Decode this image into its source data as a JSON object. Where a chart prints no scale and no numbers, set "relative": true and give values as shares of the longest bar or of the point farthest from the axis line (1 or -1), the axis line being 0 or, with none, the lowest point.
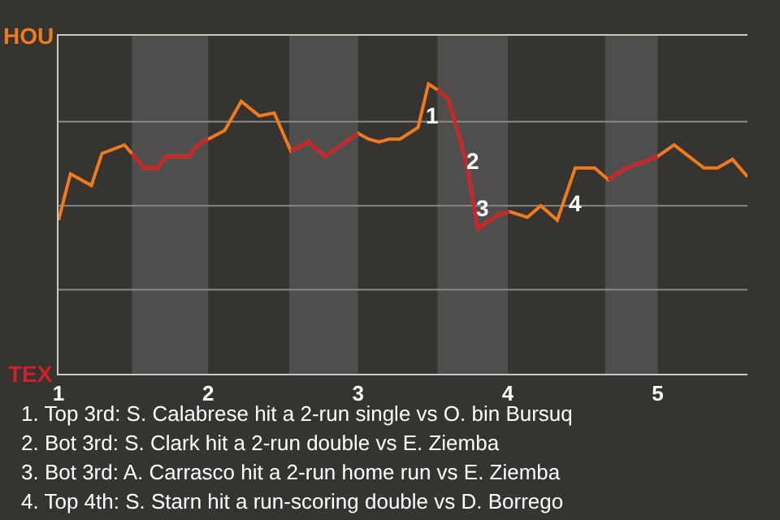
{
  "chart_data": {
    "type": "line",
    "relative": true,
    "marker": "none",
    "line_style": "solid",
    "x": [
      1.0,
      1.08,
      1.22,
      1.29,
      1.44,
      1.49,
      1.57,
      1.66,
      1.72,
      1.87,
      1.93,
      2.0,
      2.11,
      2.22,
      2.34,
      2.44,
      2.55,
      2.67,
      2.78,
      2.89,
      3.0,
      3.07,
      3.14,
      3.21,
      3.28,
      3.4,
      3.47,
      3.53,
      3.6,
      3.67,
      3.73,
      3.8,
      3.88,
      3.94,
      4.01,
      4.13,
      4.22,
      4.33,
      4.45,
      4.58,
      4.67,
      4.79,
      4.9,
      5.0,
      5.11,
      5.21,
      5.31,
      5.4,
      5.5,
      5.6
    ],
    "xlim": [
      1,
      5.6
    ],
    "xticks": [
      1,
      2,
      3,
      4,
      5
    ],
    "series": [
      {
        "color": "#f07a1e",
        "values": [
          0.53,
          0.69,
          0.65,
          0.76,
          0.79,
          0.76,
          0.71,
          0.71,
          0.75,
          0.75,
          0.79,
          0.81,
          0.84,
          0.94,
          0.89,
          0.9,
          0.77,
          0.8,
          0.75,
          0.79,
          0.83,
          0.81,
          0.8,
          0.81,
          0.81,
          0.85,
          1,
          0.98,
          0.95,
          0.83,
          0.71,
          0.5,
          0.53,
          0.55,
          0.56,
          0.54,
          0.58,
          0.53,
          0.71,
          0.71,
          0.67,
          0.71,
          0.73,
          0.75,
          0.79,
          0.75,
          0.71,
          0.71,
          0.74,
          0.68
        ]
      },
      {
        "color": "#d0202a",
        "values": [
          null,
          null,
          null,
          null,
          null,
          0.76,
          0.71,
          0.71,
          0.75,
          0.75,
          0.79,
          0.81,
          null,
          null,
          null,
          null,
          0.77,
          0.8,
          0.75,
          0.79,
          0.83,
          null,
          null,
          null,
          null,
          null,
          null,
          0.98,
          0.95,
          0.83,
          0.71,
          0.5,
          0.53,
          0.55,
          0.56,
          null,
          null,
          null,
          null,
          null,
          0.67,
          0.71,
          0.73,
          0.75,
          null,
          null,
          null,
          null,
          null,
          null
        ]
      }
    ],
    "bands": [
      {
        "axis": "x",
        "from": 1.49,
        "to": 2.0,
        "color": "#4f4e4c"
      },
      {
        "axis": "x",
        "from": 2.54,
        "to": 3.0,
        "color": "#4f4e4c"
      },
      {
        "axis": "x",
        "from": 3.53,
        "to": 4.0,
        "color": "#4f4e4c"
      },
      {
        "axis": "x",
        "from": 4.65,
        "to": 5.0,
        "color": "#4f4e4c"
      }
    ],
    "ref_lines": [
      {
        "axis": "y",
        "value": 0.29,
        "color": "#8a8986"
      },
      {
        "axis": "y",
        "value": 0.58,
        "color": "#8a8986"
      },
      {
        "axis": "y",
        "value": 0.87,
        "color": "#8a8986"
      }
    ],
    "annotations": [
      "HOU",
      "TEX",
      {
        "text": "1",
        "x": 3.47,
        "y": 1
      },
      {
        "text": "2",
        "x": 3.73,
        "y": 0.71
      },
      {
        "text": "3",
        "x": 3.8,
        "y": 0.5
      },
      {
        "text": "4",
        "x": 4.45,
        "y": 0.71
      },
      "1. Top 3rd: S. Calabrese hit a 2-run single vs O. bin Bursuq",
      "2. Bot 3rd: S. Clark hit a 2-run double vs E. Ziemba",
      "3. Bot 3rd: A. Carrasco hit a 2-run home run vs E. Ziemba",
      "4. Top 4th: S. Starn hit a run-scoring double vs D. Borrego"
    ]
  }
}
